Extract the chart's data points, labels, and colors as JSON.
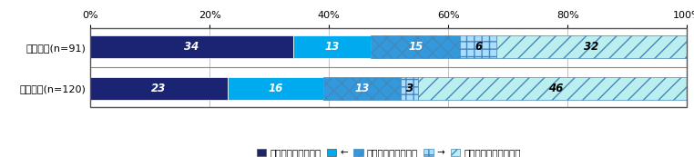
{
  "categories": [
    "３年以上(n=120)",
    "３年未満(n=91)"
  ],
  "segments": [
    {
      "label": "事件と関係している",
      "values": [
        23,
        34
      ],
      "color": "#1a2472",
      "hatch": "",
      "text_color": "#ffffff"
    },
    {
      "label": "←",
      "values": [
        16,
        13
      ],
      "color": "#00aaee",
      "hatch": "",
      "text_color": "#ffffff"
    },
    {
      "label": "どちらともいえない",
      "values": [
        13,
        15
      ],
      "color": "#3399dd",
      "hatch": "xx",
      "text_color": "#ffffff"
    },
    {
      "label": "→",
      "values": [
        3,
        6
      ],
      "color": "#aaddff",
      "hatch": "++",
      "text_color": "#000000"
    },
    {
      "label": "事件と全く関係がない",
      "values": [
        46,
        32
      ],
      "color": "#bbeeee",
      "hatch": "//",
      "text_color": "#000000"
    }
  ],
  "xlim": [
    0,
    100
  ],
  "xlabel_ticks": [
    0,
    20,
    40,
    60,
    80,
    100
  ],
  "xlabel_labels": [
    "0%",
    "20%",
    "40%",
    "60%",
    "80%",
    "100%"
  ],
  "bar_height": 0.55,
  "value_font_size": 8.5,
  "label_font_size": 8,
  "legend_font_size": 7.5,
  "background_color": "#ffffff"
}
